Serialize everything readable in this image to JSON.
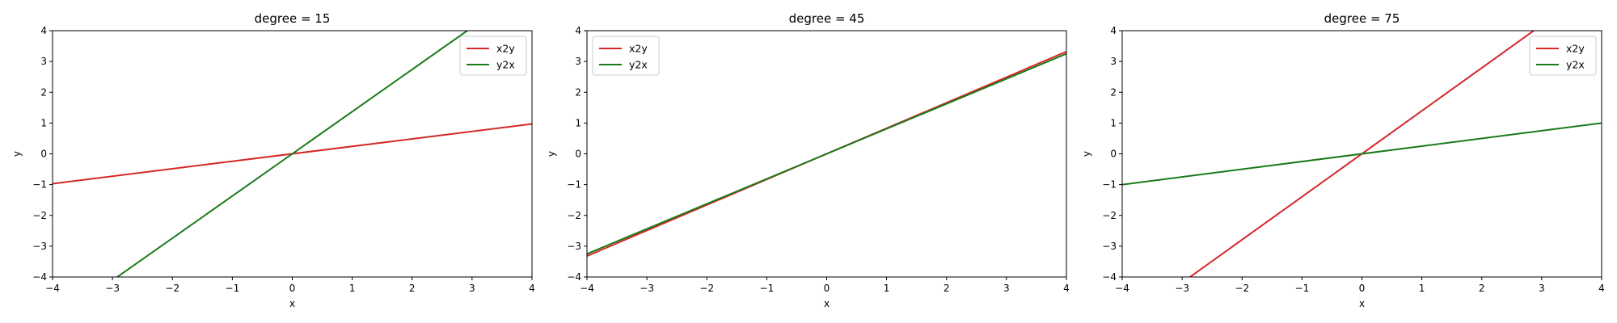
{
  "chart_data": [
    {
      "type": "line",
      "title": "degree = 15",
      "xlabel": "x",
      "ylabel": "y",
      "xlim": [
        -4,
        4
      ],
      "ylim": [
        -4,
        4
      ],
      "xticks": [
        -4,
        -3,
        -2,
        -1,
        0,
        1,
        2,
        3,
        4
      ],
      "yticks": [
        -4,
        -3,
        -2,
        -1,
        0,
        1,
        2,
        3,
        4
      ],
      "xtick_labels": [
        "−4",
        "−3",
        "−2",
        "−1",
        "0",
        "1",
        "2",
        "3",
        "4"
      ],
      "ytick_labels": [
        "−4",
        "−3",
        "−2",
        "−1",
        "0",
        "1",
        "2",
        "3",
        "4"
      ],
      "grid": false,
      "legend_position": "top-right",
      "series": [
        {
          "name": "x2y",
          "color": "#d62728",
          "x": [
            -4,
            4
          ],
          "y": [
            -0.97,
            0.97
          ]
        },
        {
          "name": "y2x",
          "color": "#1a7a1a",
          "x": [
            -4,
            4
          ],
          "y": [
            -5.48,
            5.48
          ]
        }
      ]
    },
    {
      "type": "line",
      "title": "degree = 45",
      "xlabel": "x",
      "ylabel": "y",
      "xlim": [
        -4,
        4
      ],
      "ylim": [
        -4,
        4
      ],
      "xticks": [
        -4,
        -3,
        -2,
        -1,
        0,
        1,
        2,
        3,
        4
      ],
      "yticks": [
        -4,
        -3,
        -2,
        -1,
        0,
        1,
        2,
        3,
        4
      ],
      "xtick_labels": [
        "−4",
        "−3",
        "−2",
        "−1",
        "0",
        "1",
        "2",
        "3",
        "4"
      ],
      "ytick_labels": [
        "−4",
        "−3",
        "−2",
        "−1",
        "0",
        "1",
        "2",
        "3",
        "4"
      ],
      "grid": false,
      "legend_position": "top-left",
      "series": [
        {
          "name": "x2y",
          "color": "#d62728",
          "x": [
            -4,
            4
          ],
          "y": [
            -3.32,
            3.32
          ]
        },
        {
          "name": "y2x",
          "color": "#1a7a1a",
          "x": [
            -4,
            4
          ],
          "y": [
            -3.25,
            3.25
          ]
        }
      ]
    },
    {
      "type": "line",
      "title": "degree = 75",
      "xlabel": "x",
      "ylabel": "y",
      "xlim": [
        -4,
        4
      ],
      "ylim": [
        -4,
        4
      ],
      "xticks": [
        -4,
        -3,
        -2,
        -1,
        0,
        1,
        2,
        3,
        4
      ],
      "yticks": [
        -4,
        -3,
        -2,
        -1,
        0,
        1,
        2,
        3,
        4
      ],
      "xtick_labels": [
        "−4",
        "−3",
        "−2",
        "−1",
        "0",
        "1",
        "2",
        "3",
        "4"
      ],
      "ytick_labels": [
        "−4",
        "−3",
        "−2",
        "−1",
        "0",
        "1",
        "2",
        "3",
        "4"
      ],
      "grid": false,
      "legend_position": "top-right",
      "series": [
        {
          "name": "x2y",
          "color": "#d62728",
          "x": [
            -4,
            4
          ],
          "y": [
            -5.58,
            5.58
          ]
        },
        {
          "name": "y2x",
          "color": "#1a7a1a",
          "x": [
            -4,
            4
          ],
          "y": [
            -1.0,
            1.0
          ]
        }
      ]
    }
  ]
}
